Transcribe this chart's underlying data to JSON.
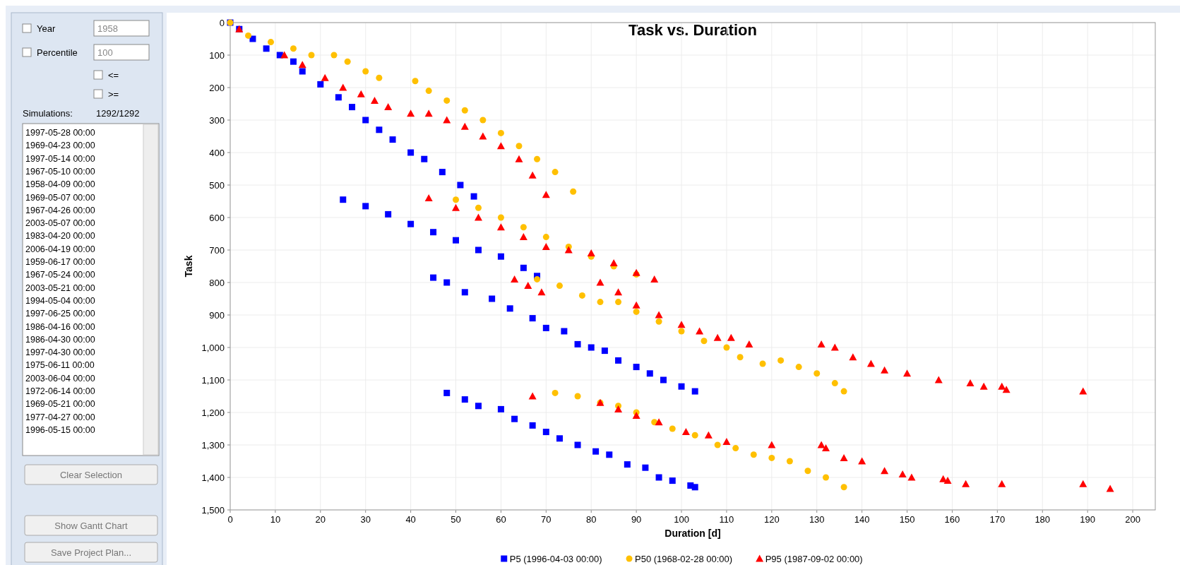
{
  "chart_data": [
    {
      "type": "other",
      "annotations": [
        "Year",
        "1958",
        "Percentile",
        "100",
        "<=",
        ">=",
        "Simulations:",
        "1292/1292",
        "1997-05-28 00:00",
        "1969-04-23 00:00",
        "1997-05-14 00:00",
        "1967-05-10 00:00",
        "1958-04-09 00:00",
        "1969-05-07 00:00",
        "1967-04-26 00:00",
        "2003-05-07 00:00",
        "1983-04-20 00:00",
        "2006-04-19 00:00",
        "1959-06-17 00:00",
        "1967-05-24 00:00",
        "2003-05-21 00:00",
        "1994-05-04 00:00",
        "1997-06-25 00:00",
        "1986-04-16 00:00",
        "1986-04-30 00:00",
        "1997-04-30 00:00",
        "1975-06-11 00:00",
        "2003-06-04 00:00",
        "1972-06-14 00:00",
        "1969-05-21 00:00",
        "1977-04-27 00:00",
        "1996-05-15 00:00",
        "Clear Selection",
        "Show Gantt Chart",
        "Save Project Plan..."
      ]
    },
    {
      "type": "scatter",
      "title": "Task vs. Duration",
      "xlabel": "Duration [d]",
      "ylabel": "Task",
      "xlim": [
        0,
        205
      ],
      "xticks": [
        0,
        10,
        20,
        30,
        40,
        50,
        60,
        70,
        80,
        90,
        100,
        110,
        120,
        130,
        140,
        150,
        160,
        170,
        180,
        190,
        200
      ],
      "ylim": [
        1500,
        0
      ],
      "yticks": [
        0,
        100,
        200,
        300,
        400,
        500,
        600,
        700,
        800,
        900,
        {
          "value": 1000,
          "label": "1,000"
        },
        {
          "value": 1100,
          "label": "1,100"
        },
        {
          "value": 1200,
          "label": "1,200"
        },
        {
          "value": 1300,
          "label": "1,300"
        },
        {
          "value": 1400,
          "label": "1,400"
        },
        {
          "value": 1500,
          "label": "1,500"
        }
      ],
      "grid": true,
      "legend": "bottom",
      "series": [
        {
          "name": "P5 (1996-04-03 00:00)",
          "color": "#0000ff",
          "marker": "square",
          "x": [
            0,
            2,
            5,
            8,
            11,
            14,
            16,
            20,
            24,
            27,
            30,
            33,
            36,
            40,
            43,
            47,
            51,
            54,
            25,
            30,
            35,
            40,
            45,
            50,
            55,
            60,
            65,
            68,
            45,
            48,
            52,
            58,
            62,
            67,
            70,
            74,
            77,
            80,
            83,
            86,
            90,
            93,
            96,
            100,
            103,
            48,
            52,
            55,
            60,
            63,
            67,
            70,
            73,
            77,
            81,
            84,
            88,
            92,
            95,
            98,
            102,
            103
          ],
          "values": [
            0,
            20,
            50,
            80,
            100,
            120,
            150,
            190,
            230,
            260,
            300,
            330,
            360,
            400,
            420,
            460,
            500,
            535,
            545,
            565,
            590,
            620,
            645,
            670,
            700,
            720,
            755,
            780,
            785,
            800,
            830,
            850,
            880,
            910,
            940,
            950,
            990,
            1000,
            1010,
            1040,
            1060,
            1080,
            1100,
            1120,
            1135,
            1140,
            1160,
            1180,
            1190,
            1220,
            1240,
            1260,
            1280,
            1300,
            1320,
            1330,
            1360,
            1370,
            1400,
            1410,
            1425,
            1430
          ]
        },
        {
          "name": "P50 (1968-02-28 00:00)",
          "color": "#ffc000",
          "marker": "circle",
          "x": [
            0,
            4,
            9,
            14,
            18,
            23,
            26,
            30,
            33,
            41,
            44,
            48,
            52,
            56,
            60,
            64,
            68,
            72,
            76,
            50,
            55,
            60,
            65,
            70,
            75,
            80,
            85,
            90,
            68,
            73,
            78,
            82,
            86,
            90,
            95,
            100,
            105,
            110,
            113,
            118,
            122,
            126,
            130,
            134,
            136,
            72,
            77,
            82,
            86,
            90,
            94,
            98,
            103,
            108,
            112,
            116,
            120,
            124,
            128,
            132,
            136
          ],
          "values": [
            0,
            40,
            60,
            80,
            100,
            100,
            120,
            150,
            170,
            180,
            210,
            240,
            270,
            300,
            340,
            380,
            420,
            460,
            520,
            545,
            570,
            600,
            630,
            660,
            690,
            720,
            750,
            775,
            790,
            810,
            840,
            860,
            860,
            890,
            920,
            950,
            980,
            1000,
            1030,
            1050,
            1040,
            1060,
            1080,
            1110,
            1135,
            1140,
            1150,
            1170,
            1180,
            1200,
            1230,
            1250,
            1270,
            1300,
            1310,
            1330,
            1340,
            1350,
            1380,
            1400,
            1430
          ]
        },
        {
          "name": "P95 (1987-09-02 00:00)",
          "color": "#ff0000",
          "marker": "triangle",
          "x": [
            2,
            12,
            16,
            21,
            25,
            29,
            32,
            35,
            40,
            44,
            48,
            52,
            56,
            60,
            64,
            67,
            70,
            44,
            50,
            55,
            60,
            65,
            70,
            75,
            80,
            85,
            90,
            94,
            63,
            66,
            69,
            82,
            86,
            90,
            95,
            100,
            104,
            108,
            111,
            115,
            131,
            134,
            138,
            142,
            145,
            150,
            157,
            164,
            167,
            171,
            172,
            189,
            67,
            82,
            86,
            90,
            95,
            101,
            106,
            110,
            120,
            131,
            132,
            136,
            140,
            145,
            149,
            151,
            158,
            159,
            163,
            171,
            189,
            195
          ],
          "values": [
            20,
            100,
            130,
            170,
            200,
            220,
            240,
            260,
            280,
            280,
            300,
            320,
            350,
            380,
            420,
            470,
            530,
            540,
            570,
            600,
            630,
            660,
            690,
            700,
            710,
            740,
            770,
            790,
            790,
            810,
            830,
            800,
            830,
            870,
            900,
            930,
            950,
            970,
            970,
            990,
            990,
            1000,
            1030,
            1050,
            1070,
            1080,
            1100,
            1110,
            1120,
            1120,
            1130,
            1135,
            1150,
            1170,
            1190,
            1210,
            1230,
            1260,
            1270,
            1290,
            1300,
            1300,
            1310,
            1340,
            1350,
            1380,
            1390,
            1400,
            1405,
            1410,
            1420,
            1420,
            1420,
            1435
          ]
        }
      ]
    }
  ]
}
